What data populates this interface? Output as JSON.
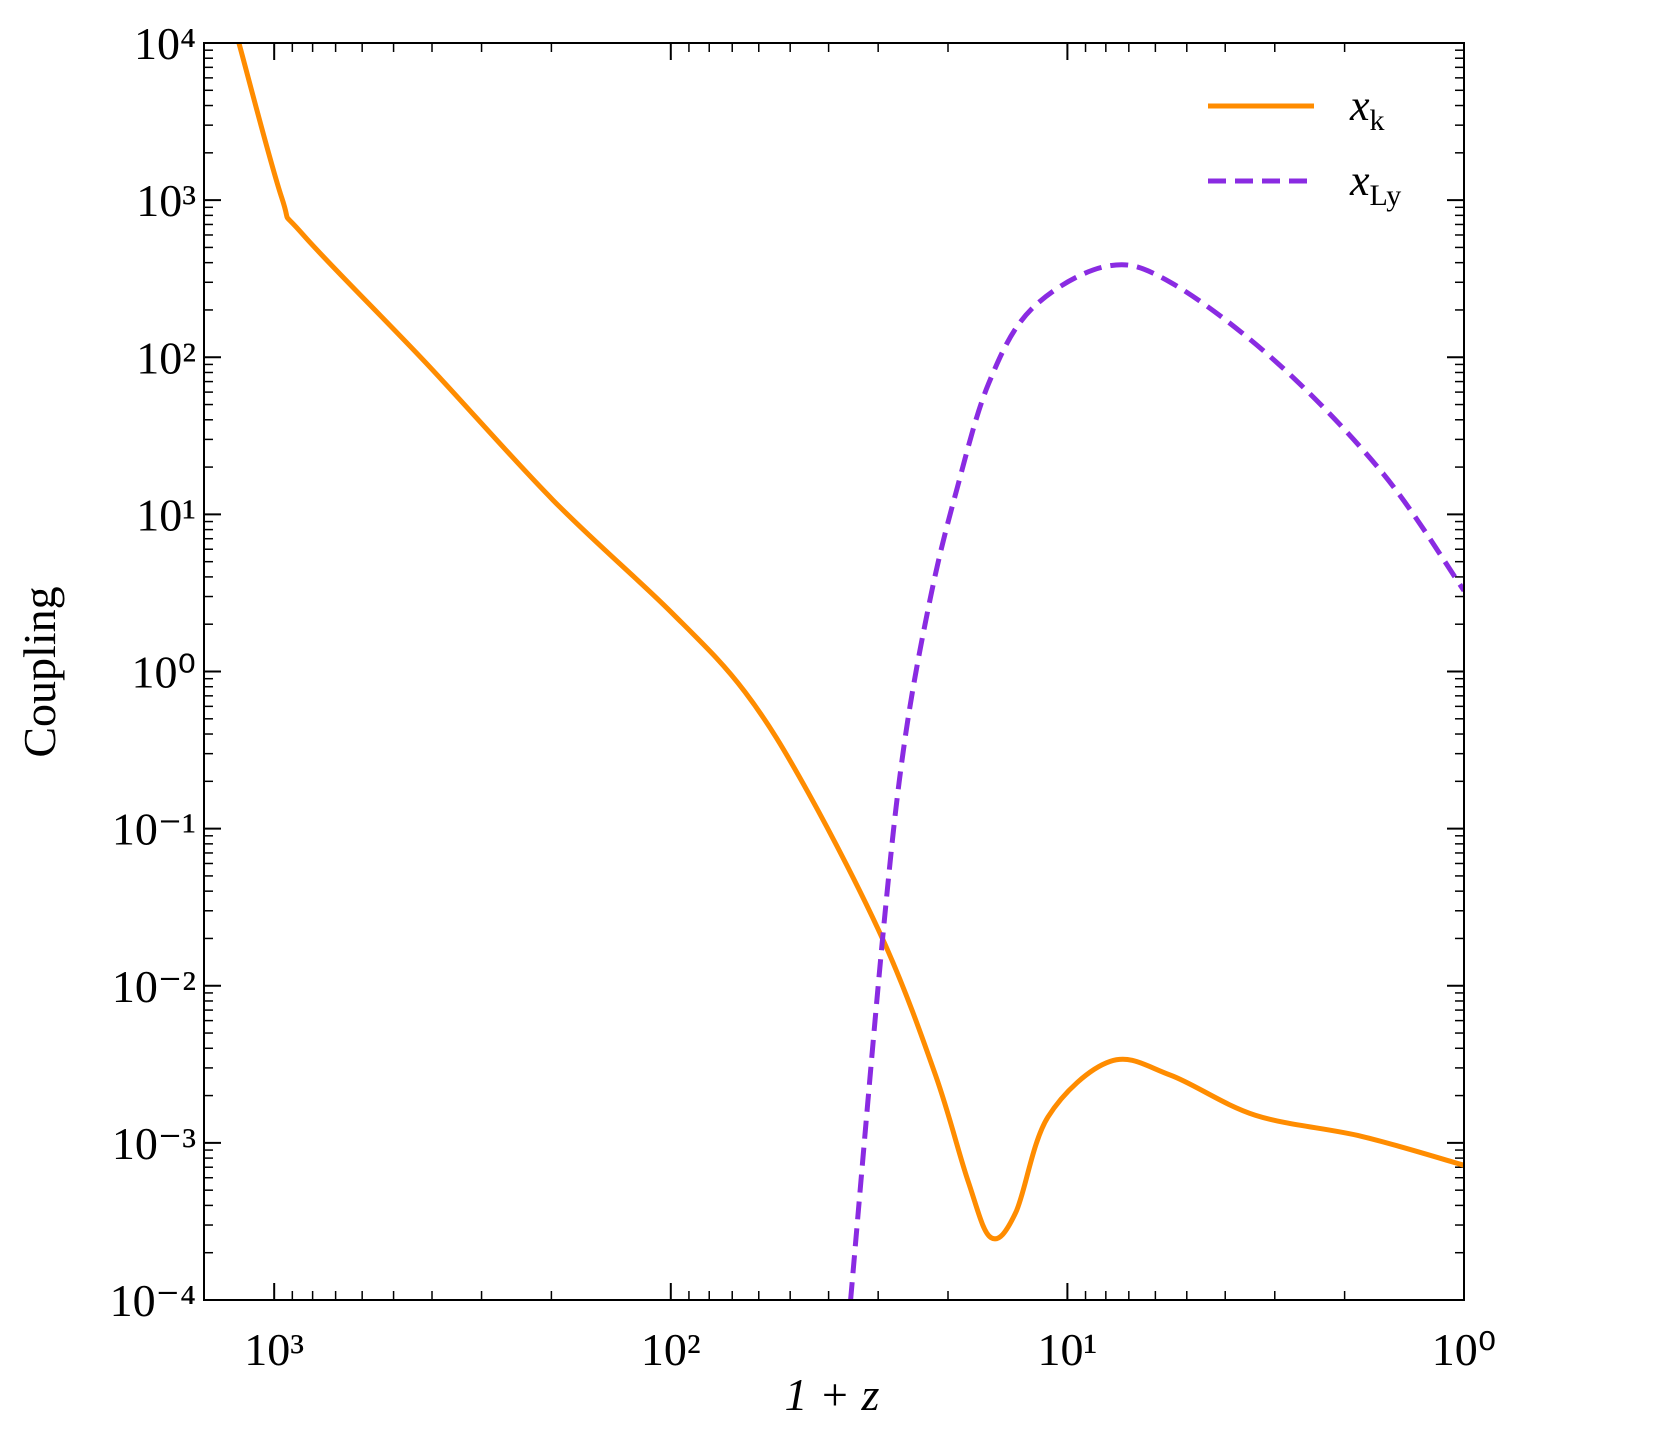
{
  "chart_data": {
    "type": "line",
    "x_label": "1 + z",
    "y_label": "Coupling",
    "x_scale": "log",
    "y_scale": "log",
    "x_reversed": true,
    "xlim": [
      1503,
      1
    ],
    "ylim": [
      0.0001,
      10000
    ],
    "xticks": [
      {
        "value": 1000,
        "label": "10³"
      },
      {
        "value": 100,
        "label": "10²"
      },
      {
        "value": 10,
        "label": "10¹"
      },
      {
        "value": 1,
        "label": "10⁰"
      }
    ],
    "yticks": [
      {
        "value": 0.0001,
        "label": "10⁻⁴"
      },
      {
        "value": 0.001,
        "label": "10⁻³"
      },
      {
        "value": 0.01,
        "label": "10⁻²"
      },
      {
        "value": 0.1,
        "label": "10⁻¹"
      },
      {
        "value": 1,
        "label": "10⁰"
      },
      {
        "value": 10,
        "label": "10¹"
      },
      {
        "value": 100,
        "label": "10²"
      },
      {
        "value": 1000,
        "label": "10³"
      },
      {
        "value": 10000,
        "label": "10⁴"
      }
    ],
    "legend_position": "upper right",
    "series": [
      {
        "name": "x_k",
        "color": "#ff8c00",
        "dash": "solid",
        "x": [
          1227,
          958,
          847,
          416,
          198,
          100,
          65,
          45,
          29,
          21.5,
          17.8,
          15.6,
          13.5,
          11.2,
          7.8,
          5.5,
          3.36,
          1.81,
          1
        ],
        "values": [
          10000,
          1042,
          605,
          93,
          12.3,
          2.4,
          0.74,
          0.169,
          0.019,
          0.0027,
          0.00057,
          0.00025,
          0.00036,
          0.00146,
          0.0033,
          0.0027,
          0.0015,
          0.0011,
          0.00072
        ]
      },
      {
        "name": "x_Ly",
        "color": "#8a2be2",
        "dash": "dashed",
        "x": [
          35.2,
          29.2,
          25.8,
          22.1,
          19,
          15.8,
          12.3,
          7.98,
          5.5,
          2.97,
          1.6,
          1
        ],
        "values": [
          0.0001,
          0.0206,
          0.34,
          3.03,
          14.4,
          68,
          203,
          379,
          300,
          93,
          18.2,
          3.27
        ]
      }
    ]
  }
}
